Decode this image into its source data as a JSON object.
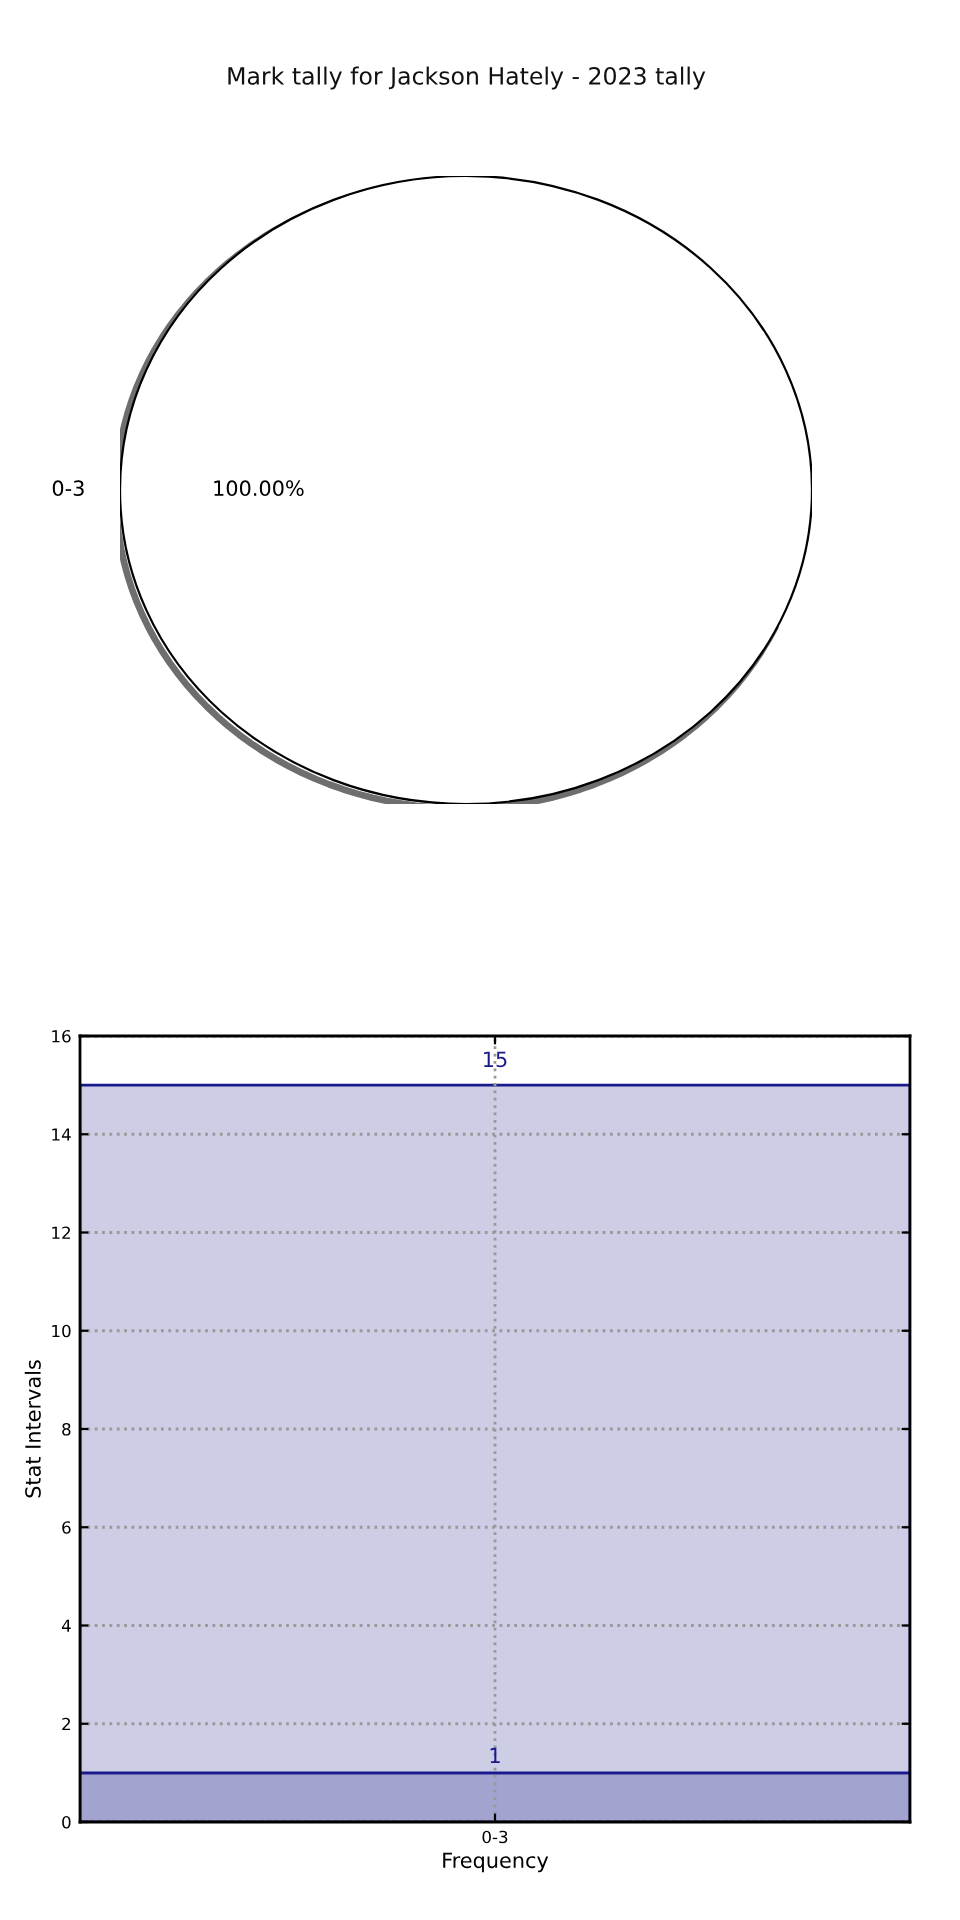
{
  "chart_data": [
    {
      "type": "pie",
      "title": "Mark tally for Jackson Hately - 2023 tally",
      "categories": [
        "0-3"
      ],
      "values": [
        100
      ],
      "colors": [
        "#ffffff"
      ],
      "value_labels": [
        "100.00%"
      ]
    },
    {
      "type": "bar",
      "categories": [
        "0-3"
      ],
      "stacked": true,
      "series": [
        {
          "color": "#a3a3cf",
          "values": [
            1
          ],
          "value_labels": [
            "1"
          ]
        },
        {
          "color": "#cdcde6",
          "values": [
            14
          ]
        }
      ],
      "totals": [
        "15"
      ],
      "ylim": [
        0,
        16
      ],
      "yticks": [
        0,
        2,
        4,
        6,
        8,
        10,
        12,
        14,
        16
      ],
      "xlabel": "Frequency",
      "ylabel": "Stat Intervals",
      "grid": true
    }
  ]
}
